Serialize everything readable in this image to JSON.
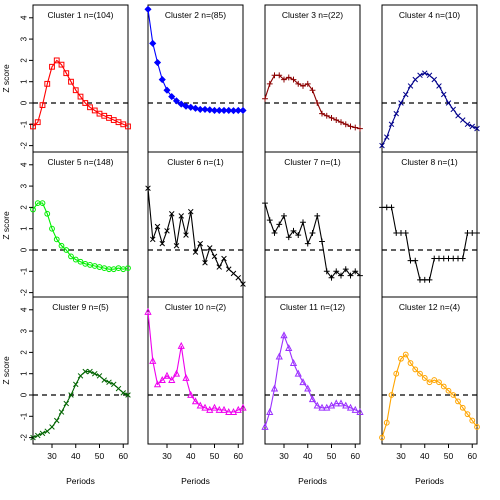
{
  "figure": {
    "ylabel": "Z score",
    "xlabel": "Periods",
    "xlim": [
      22,
      62
    ],
    "ylim": [
      -2.3,
      4.6
    ],
    "xticks": [
      30,
      40,
      50,
      60
    ],
    "yticks": [
      -2,
      -1,
      0,
      1,
      2,
      3,
      4
    ],
    "reference_line_y": 0
  },
  "chart_data": [
    {
      "type": "line",
      "title": "Cluster 1 n=(104)",
      "color": "#ff0000",
      "marker": "square",
      "x": [
        22,
        24,
        26,
        28,
        30,
        32,
        34,
        36,
        38,
        40,
        42,
        44,
        46,
        48,
        50,
        52,
        54,
        56,
        58,
        60,
        62
      ],
      "y": [
        -1.1,
        -0.9,
        -0.1,
        0.9,
        1.7,
        2.0,
        1.8,
        1.4,
        1.0,
        0.6,
        0.3,
        0.0,
        -0.2,
        -0.35,
        -0.5,
        -0.6,
        -0.7,
        -0.8,
        -0.9,
        -1.0,
        -1.1
      ]
    },
    {
      "type": "line",
      "title": "Cluster 2 n=(85)",
      "color": "#0000ff",
      "marker": "diamond",
      "x": [
        22,
        24,
        26,
        28,
        30,
        32,
        34,
        36,
        38,
        40,
        42,
        44,
        46,
        48,
        50,
        52,
        54,
        56,
        58,
        60,
        62
      ],
      "y": [
        4.4,
        2.8,
        1.9,
        1.1,
        0.6,
        0.3,
        0.1,
        -0.05,
        -0.15,
        -0.2,
        -0.25,
        -0.3,
        -0.3,
        -0.32,
        -0.35,
        -0.35,
        -0.35,
        -0.35,
        -0.36,
        -0.35,
        -0.35
      ]
    },
    {
      "type": "line",
      "title": "Cluster 3 n=(22)",
      "color": "#8b0000",
      "marker": "plus",
      "x": [
        22,
        24,
        26,
        28,
        30,
        32,
        34,
        36,
        38,
        40,
        42,
        44,
        46,
        48,
        50,
        52,
        54,
        56,
        58,
        60,
        62
      ],
      "y": [
        0.2,
        0.9,
        1.3,
        1.3,
        1.1,
        1.2,
        1.1,
        0.9,
        0.8,
        0.9,
        0.6,
        0.0,
        -0.5,
        -0.6,
        -0.7,
        -0.8,
        -0.9,
        -1.0,
        -1.1,
        -1.15,
        -1.2
      ]
    },
    {
      "type": "line",
      "title": "Cluster 4 n=(10)",
      "color": "#00008b",
      "marker": "x",
      "x": [
        22,
        24,
        26,
        28,
        30,
        32,
        34,
        36,
        38,
        40,
        42,
        44,
        46,
        48,
        50,
        52,
        54,
        56,
        58,
        60,
        62
      ],
      "y": [
        -2.0,
        -1.6,
        -1.0,
        -0.5,
        0.0,
        0.4,
        0.8,
        1.1,
        1.3,
        1.4,
        1.3,
        1.1,
        0.8,
        0.4,
        0.0,
        -0.3,
        -0.6,
        -0.8,
        -1.0,
        -1.1,
        -1.2
      ]
    },
    {
      "type": "line",
      "title": "Cluster 5 n=(148)",
      "color": "#00ee00",
      "marker": "circle",
      "x": [
        22,
        24,
        26,
        28,
        30,
        32,
        34,
        36,
        38,
        40,
        42,
        44,
        46,
        48,
        50,
        52,
        54,
        56,
        58,
        60,
        62
      ],
      "y": [
        1.9,
        2.2,
        2.2,
        1.7,
        1.0,
        0.5,
        0.2,
        0.0,
        -0.3,
        -0.45,
        -0.55,
        -0.65,
        -0.7,
        -0.75,
        -0.8,
        -0.85,
        -0.9,
        -0.9,
        -0.85,
        -0.9,
        -0.85
      ]
    },
    {
      "type": "line",
      "title": "Cluster 6 n=(1)",
      "color": "#000000",
      "marker": "x",
      "x": [
        22,
        24,
        26,
        28,
        30,
        32,
        34,
        36,
        38,
        40,
        42,
        44,
        46,
        48,
        50,
        52,
        54,
        56,
        58,
        60,
        62
      ],
      "y": [
        2.9,
        0.5,
        1.1,
        0.3,
        0.9,
        1.7,
        0.2,
        1.6,
        0.7,
        1.8,
        -0.1,
        0.3,
        -0.6,
        0.1,
        -0.3,
        -0.8,
        -0.4,
        -0.9,
        -1.1,
        -1.3,
        -1.6
      ]
    },
    {
      "type": "line",
      "title": "Cluster 7 n=(1)",
      "color": "#000000",
      "marker": "plus",
      "x": [
        22,
        24,
        26,
        28,
        30,
        32,
        34,
        36,
        38,
        40,
        42,
        44,
        46,
        48,
        50,
        52,
        54,
        56,
        58,
        60,
        62
      ],
      "y": [
        2.2,
        1.4,
        0.8,
        1.2,
        1.6,
        0.6,
        0.9,
        0.7,
        1.3,
        0.3,
        0.8,
        1.6,
        0.4,
        -1.0,
        -1.3,
        -1.0,
        -1.2,
        -0.9,
        -1.2,
        -1.0,
        -1.2
      ]
    },
    {
      "type": "line",
      "title": "Cluster 8 n=(1)",
      "color": "#000000",
      "marker": "plus",
      "x": [
        22,
        24,
        26,
        28,
        30,
        32,
        34,
        36,
        38,
        40,
        42,
        44,
        46,
        48,
        50,
        52,
        54,
        56,
        58,
        60,
        62
      ],
      "y": [
        2.0,
        2.0,
        2.0,
        0.8,
        0.8,
        0.8,
        -0.5,
        -0.5,
        -1.4,
        -1.4,
        -1.4,
        -0.4,
        -0.4,
        -0.4,
        -0.4,
        -0.4,
        -0.4,
        -0.4,
        0.8,
        0.8,
        0.8
      ]
    },
    {
      "type": "line",
      "title": "Cluster 9 n=(5)",
      "color": "#006400",
      "marker": "x",
      "x": [
        22,
        24,
        26,
        28,
        30,
        32,
        34,
        36,
        38,
        40,
        42,
        44,
        46,
        48,
        50,
        52,
        54,
        56,
        58,
        60,
        62
      ],
      "y": [
        -2.0,
        -1.9,
        -1.8,
        -1.7,
        -1.5,
        -1.2,
        -0.8,
        -0.4,
        0.0,
        0.5,
        0.9,
        1.1,
        1.1,
        1.0,
        0.9,
        0.7,
        0.6,
        0.5,
        0.3,
        0.1,
        0.0
      ]
    },
    {
      "type": "line",
      "title": "Cluster 10 n=(2)",
      "color": "#ee00ee",
      "marker": "triangle",
      "x": [
        22,
        24,
        26,
        28,
        30,
        32,
        34,
        36,
        38,
        40,
        42,
        44,
        46,
        48,
        50,
        52,
        54,
        56,
        58,
        60,
        62
      ],
      "y": [
        3.9,
        1.6,
        0.5,
        0.7,
        0.9,
        0.7,
        1.0,
        2.3,
        0.8,
        0.0,
        -0.3,
        -0.5,
        -0.6,
        -0.7,
        -0.6,
        -0.7,
        -0.7,
        -0.8,
        -0.8,
        -0.7,
        -0.6
      ]
    },
    {
      "type": "line",
      "title": "Cluster 11 n=(12)",
      "color": "#9b30ff",
      "marker": "triangle",
      "x": [
        22,
        24,
        26,
        28,
        30,
        32,
        34,
        36,
        38,
        40,
        42,
        44,
        46,
        48,
        50,
        52,
        54,
        56,
        58,
        60,
        62
      ],
      "y": [
        -1.5,
        -0.8,
        0.3,
        1.8,
        2.8,
        2.2,
        1.5,
        1.0,
        0.6,
        0.3,
        -0.2,
        -0.5,
        -0.6,
        -0.6,
        -0.5,
        -0.4,
        -0.4,
        -0.5,
        -0.6,
        -0.7,
        -0.8
      ]
    },
    {
      "type": "line",
      "title": "Cluster 12 n=(4)",
      "color": "#ffa500",
      "marker": "circle",
      "x": [
        22,
        24,
        26,
        28,
        30,
        32,
        34,
        36,
        38,
        40,
        42,
        44,
        46,
        48,
        50,
        52,
        54,
        56,
        58,
        60,
        62
      ],
      "y": [
        -2.0,
        -1.3,
        0.0,
        1.0,
        1.7,
        1.9,
        1.5,
        1.2,
        1.0,
        0.8,
        0.6,
        0.7,
        0.6,
        0.4,
        0.2,
        0.0,
        -0.3,
        -0.6,
        -0.9,
        -1.2,
        -1.5
      ]
    }
  ]
}
